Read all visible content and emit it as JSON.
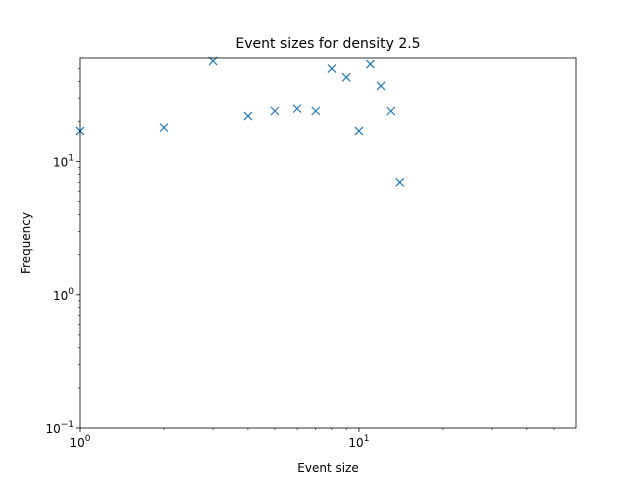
{
  "chart_data": {
    "type": "scatter",
    "title": "Event sizes for density 2.5",
    "xlabel": "Event size",
    "ylabel": "Frequency",
    "xscale": "log",
    "yscale": "log",
    "xlim": [
      1,
      60
    ],
    "ylim": [
      0.1,
      60
    ],
    "grid": false,
    "marker": "x",
    "color": "#1f77b4",
    "x": [
      1,
      2,
      3,
      4,
      5,
      6,
      7,
      8,
      9,
      10,
      11,
      12,
      13,
      14
    ],
    "y": [
      17,
      18,
      57,
      22,
      24,
      25,
      24,
      50,
      43,
      17,
      54,
      37,
      24,
      7
    ],
    "x_ticks": [
      {
        "value": 1,
        "base": "10",
        "exp": "0"
      },
      {
        "value": 10,
        "base": "10",
        "exp": "1"
      }
    ],
    "y_ticks": [
      {
        "value": 0.1,
        "base": "10",
        "exp": "−1"
      },
      {
        "value": 1,
        "base": "10",
        "exp": "0"
      },
      {
        "value": 10,
        "base": "10",
        "exp": "1"
      }
    ]
  }
}
